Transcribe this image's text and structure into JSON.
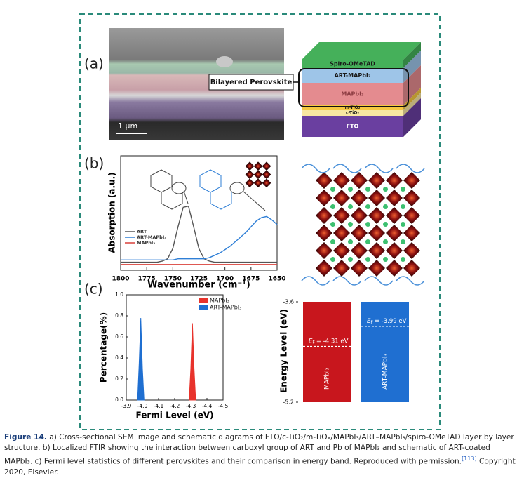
{
  "figure": {
    "panel_a": {
      "label": "(a)",
      "scale_bar": "1 μm",
      "callout": "Bilayered Perovskite",
      "layers": [
        {
          "name": "Spiro-OMeTAD",
          "color": "#45b05a"
        },
        {
          "name": "ART-MAPbI₃",
          "color": "#9ec5e8"
        },
        {
          "name": "MAPbI₃",
          "color": "#e48b8f"
        },
        {
          "name": "m-TiO₂",
          "color": "#f5c842"
        },
        {
          "name": "c-TiO₂",
          "color": "#f8e7a2"
        },
        {
          "name": "FTO",
          "color": "#6a3fa0"
        }
      ]
    },
    "panel_b": {
      "label": "(b)",
      "chart": {
        "type": "line",
        "xlabel": "Wavenumber (cm⁻¹)",
        "ylabel": "Absorption (a.u.)",
        "xlim": [
          1800,
          1650
        ],
        "ylim": [
          0,
          1
        ],
        "xticks": [
          1800,
          1775,
          1750,
          1725,
          1700,
          1675,
          1650
        ],
        "x": [
          1800,
          1795,
          1790,
          1785,
          1780,
          1775,
          1770,
          1765,
          1760,
          1755,
          1750,
          1745,
          1740,
          1735,
          1730,
          1725,
          1720,
          1715,
          1710,
          1705,
          1700,
          1695,
          1690,
          1685,
          1680,
          1675,
          1670,
          1665,
          1660,
          1655,
          1650
        ],
        "series": [
          {
            "name": "ART",
            "color": "#555555",
            "values": [
              0.07,
              0.07,
              0.07,
              0.07,
              0.07,
              0.07,
              0.07,
              0.07,
              0.08,
              0.1,
              0.19,
              0.38,
              0.55,
              0.56,
              0.38,
              0.19,
              0.1,
              0.08,
              0.07,
              0.07,
              0.07,
              0.07,
              0.07,
              0.07,
              0.07,
              0.07,
              0.07,
              0.07,
              0.07,
              0.07,
              0.07
            ]
          },
          {
            "name": "ART-MAPbI₃",
            "color": "#2f7fd6",
            "values": [
              0.09,
              0.09,
              0.09,
              0.09,
              0.09,
              0.09,
              0.09,
              0.09,
              0.09,
              0.09,
              0.09,
              0.1,
              0.1,
              0.1,
              0.1,
              0.1,
              0.1,
              0.11,
              0.13,
              0.15,
              0.18,
              0.21,
              0.25,
              0.29,
              0.33,
              0.38,
              0.43,
              0.46,
              0.47,
              0.44,
              0.4
            ]
          },
          {
            "name": "MAPbI₃",
            "color": "#d9403a",
            "values": [
              0.05,
              0.05,
              0.05,
              0.05,
              0.05,
              0.05,
              0.05,
              0.05,
              0.05,
              0.05,
              0.05,
              0.05,
              0.05,
              0.05,
              0.05,
              0.05,
              0.05,
              0.05,
              0.05,
              0.05,
              0.05,
              0.05,
              0.05,
              0.05,
              0.05,
              0.05,
              0.05,
              0.05,
              0.05,
              0.05,
              0.05
            ]
          }
        ]
      }
    },
    "panel_c": {
      "label": "(c)",
      "histogram": {
        "type": "area",
        "xlabel": "Fermi Level (eV)",
        "ylabel": "Percentage(%)",
        "xlim": [
          -3.9,
          -4.5
        ],
        "ylim": [
          0,
          1
        ],
        "xticks": [
          -3.9,
          {
            "value": -4.0,
            "label": "-4.0"
          },
          -4.1,
          -4.2,
          -4.3,
          -4.4,
          -4.5
        ],
        "yticks": [
          {
            "value": 0,
            "label": "0.0"
          },
          0.2,
          0.4,
          0.6,
          0.8,
          {
            "value": 1,
            "label": "1.0"
          }
        ],
        "series": [
          {
            "name": "MAPbI₃",
            "color": "#e8332c",
            "x": [
              -4.29,
              -4.3,
              -4.31,
              -4.32,
              -4.33
            ],
            "values": [
              0,
              0.3,
              0.73,
              0.3,
              0
            ]
          },
          {
            "name": "ART-MAPbI₃",
            "color": "#1f6fd1",
            "x": [
              -3.97,
              -3.98,
              -3.99,
              -4.0,
              -4.01
            ],
            "values": [
              0,
              0.35,
              0.78,
              0.3,
              0
            ]
          }
        ]
      },
      "energy": {
        "type": "bar",
        "ylabel": "Energy Level (eV)",
        "ylim": [
          -5.2,
          -3.6
        ],
        "yticks": [
          -3.6,
          -5.2
        ],
        "fermi_symbol": "E",
        "fermi_subscript": "F",
        "categories": [
          "MAPbI₃",
          "ART-MAPbI₃"
        ],
        "colors": [
          "#c8161d",
          "#1f6fd1"
        ],
        "values": [
          -4.31,
          -3.99
        ],
        "value_labels": [
          "= -4.31 eV",
          "= -3.99 eV"
        ]
      }
    }
  },
  "caption": {
    "label": "Figure 14.",
    "text": "a) Cross-sectional SEM image and schematic diagrams of FTO/c-TiO₂/m-TiOₓ/MAPbI₃/ART–MAPbI₃/spiro-OMeTAD layer by layer structure. b) Localized FTIR showing the interaction between carboxyl group of ART and Pb of MAPbI₃ and schematic of ART-coated MAPbI₃. c) Fermi level statistics of different perovskites and their comparison in energy band. Reproduced with permission.",
    "ref": "[113]",
    "credit": "Copyright 2020, Elsevier."
  }
}
